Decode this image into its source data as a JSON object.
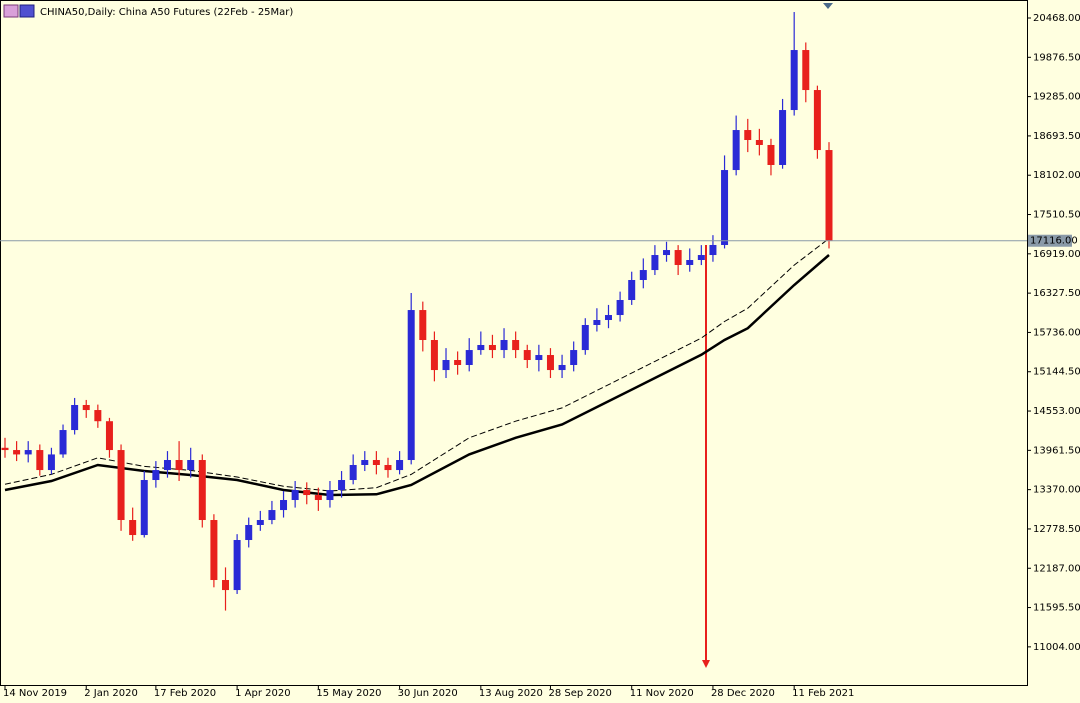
{
  "chart_data": {
    "type": "candlestick",
    "title": "CHINA50,Daily:  China A50 Futures (22Feb - 25Mar)",
    "categories": [
      "14 Nov 2019",
      null,
      null,
      null,
      null,
      null,
      null,
      "2 Jan 2020",
      null,
      null,
      null,
      null,
      null,
      "17 Feb 2020",
      null,
      null,
      null,
      null,
      null,
      null,
      "1 Apr 2020",
      null,
      null,
      null,
      null,
      null,
      null,
      "15 May 2020",
      null,
      null,
      null,
      null,
      null,
      null,
      "30 Jun 2020",
      null,
      null,
      null,
      null,
      null,
      null,
      "13 Aug 2020",
      null,
      null,
      null,
      null,
      null,
      "28 Sep 2020",
      null,
      null,
      null,
      null,
      null,
      null,
      "11 Nov 2020",
      null,
      null,
      null,
      null,
      null,
      null,
      "28 Dec 2020",
      null,
      null,
      null,
      null,
      null,
      null,
      "11 Feb 2021",
      null,
      null,
      null
    ],
    "open": [
      14000,
      13966,
      13900,
      13966,
      13665,
      13900,
      14267,
      14644,
      14568,
      14400,
      13966,
      12913,
      12687,
      13515,
      13665,
      13816,
      13665,
      13816,
      12913,
      12010,
      11859,
      12612,
      12838,
      12913,
      13063,
      13214,
      13364,
      13289,
      13214,
      13364,
      13515,
      13741,
      13816,
      13741,
      13665,
      13816,
      16073,
      15622,
      15170,
      15321,
      15246,
      15471,
      15547,
      15471,
      15622,
      15471,
      15321,
      15396,
      15170,
      15246,
      15471,
      15848,
      15923,
      15998,
      16224,
      16525,
      16675,
      16901,
      16976,
      16751,
      16826,
      16901,
      17052,
      18180,
      18782,
      18632,
      18557,
      18256,
      19083,
      19986,
      19384,
      18481
    ],
    "high": [
      14150,
      14100,
      14100,
      14050,
      14000,
      14350,
      14750,
      14720,
      14650,
      14450,
      14050,
      13100,
      13650,
      13800,
      13950,
      14100,
      14000,
      13900,
      13000,
      12200,
      12700,
      12950,
      13050,
      13200,
      13350,
      13500,
      13480,
      13400,
      13500,
      13650,
      13900,
      13950,
      13950,
      13850,
      13950,
      16330,
      16200,
      15750,
      15500,
      15450,
      15650,
      15750,
      15700,
      15800,
      15750,
      15550,
      15550,
      15500,
      15400,
      15600,
      15950,
      16100,
      16150,
      16350,
      16650,
      16850,
      17050,
      17100,
      17050,
      17000,
      17050,
      17200,
      18400,
      19000,
      18950,
      18800,
      18650,
      19250,
      20558,
      20100,
      19450,
      18600
    ],
    "low": [
      13850,
      13800,
      13780,
      13580,
      13600,
      13850,
      14200,
      14450,
      14300,
      13850,
      12750,
      12600,
      12650,
      13400,
      13550,
      13500,
      13550,
      12800,
      11900,
      11550,
      11800,
      12500,
      12750,
      12850,
      12950,
      13100,
      13150,
      13050,
      13100,
      13250,
      13450,
      13650,
      13600,
      13550,
      13600,
      13750,
      15450,
      15000,
      15050,
      15100,
      15150,
      15400,
      15350,
      15350,
      15350,
      15200,
      15150,
      15050,
      15050,
      15150,
      15400,
      15750,
      15800,
      15900,
      16150,
      16400,
      16600,
      16800,
      16600,
      16650,
      16750,
      16800,
      17000,
      18100,
      18450,
      18400,
      18100,
      18200,
      19000,
      19200,
      18350,
      17000
    ],
    "close": [
      13966,
      13900,
      13966,
      13665,
      13900,
      14267,
      14644,
      14568,
      14400,
      13966,
      12913,
      12687,
      13515,
      13665,
      13816,
      13665,
      13816,
      12913,
      12010,
      11859,
      12612,
      12838,
      12913,
      13063,
      13214,
      13364,
      13289,
      13214,
      13364,
      13515,
      13741,
      13816,
      13741,
      13665,
      13816,
      16073,
      15622,
      15170,
      15321,
      15246,
      15471,
      15547,
      15471,
      15622,
      15471,
      15321,
      15396,
      15170,
      15246,
      15471,
      15848,
      15923,
      15998,
      16224,
      16525,
      16675,
      16901,
      16976,
      16751,
      16826,
      16901,
      17052,
      18180,
      18782,
      18632,
      18557,
      18256,
      19083,
      19986,
      19384,
      18481,
      17116
    ],
    "up_color": "#2a2ad6",
    "down_color": "#e8201c",
    "lines": [
      {
        "color": "#000000",
        "width": 2.5,
        "dashed": false,
        "x": [
          0,
          4,
          8,
          12,
          16,
          20,
          24,
          28,
          32,
          35,
          40,
          44,
          48,
          52,
          56,
          60,
          62,
          64,
          68,
          71
        ],
        "values": [
          13364,
          13500,
          13741,
          13650,
          13590,
          13515,
          13364,
          13289,
          13300,
          13440,
          13900,
          14150,
          14350,
          14700,
          15050,
          15400,
          15622,
          15800,
          16450,
          16901
        ]
      },
      {
        "color": "#000000",
        "width": 1,
        "dashed": true,
        "x": [
          0,
          4,
          8,
          12,
          16,
          20,
          24,
          28,
          32,
          35,
          40,
          44,
          48,
          52,
          56,
          60,
          62,
          64,
          68,
          71
        ],
        "values": [
          13450,
          13600,
          13850,
          13720,
          13660,
          13560,
          13420,
          13350,
          13400,
          13600,
          14150,
          14400,
          14600,
          14950,
          15300,
          15650,
          15900,
          16100,
          16750,
          17150
        ]
      }
    ],
    "ylim": [
      10430,
      20739
    ],
    "yticks": [
      {
        "value": 20468,
        "label": "20468.00"
      },
      {
        "value": 19876.5,
        "label": "19876.50"
      },
      {
        "value": 19285,
        "label": "19285.00"
      },
      {
        "value": 18693.5,
        "label": "18693.50"
      },
      {
        "value": 18102,
        "label": "18102.00"
      },
      {
        "value": 17510.5,
        "label": "17510.50"
      },
      {
        "value": 16919,
        "label": "16919.00"
      },
      {
        "value": 16327.5,
        "label": "16327.50"
      },
      {
        "value": 15736,
        "label": "15736.00"
      },
      {
        "value": 15144.5,
        "label": "15144.50"
      },
      {
        "value": 14553,
        "label": "14553.00"
      },
      {
        "value": 13961.5,
        "label": "13961.50"
      },
      {
        "value": 13370,
        "label": "13370.00"
      },
      {
        "value": 12778.5,
        "label": "12778.50"
      },
      {
        "value": 12187,
        "label": "12187.00"
      },
      {
        "value": 11595.5,
        "label": "11595.50"
      },
      {
        "value": 11004,
        "label": "11004.00"
      }
    ],
    "current_price": {
      "value": 17116,
      "label": "17116.00"
    }
  }
}
